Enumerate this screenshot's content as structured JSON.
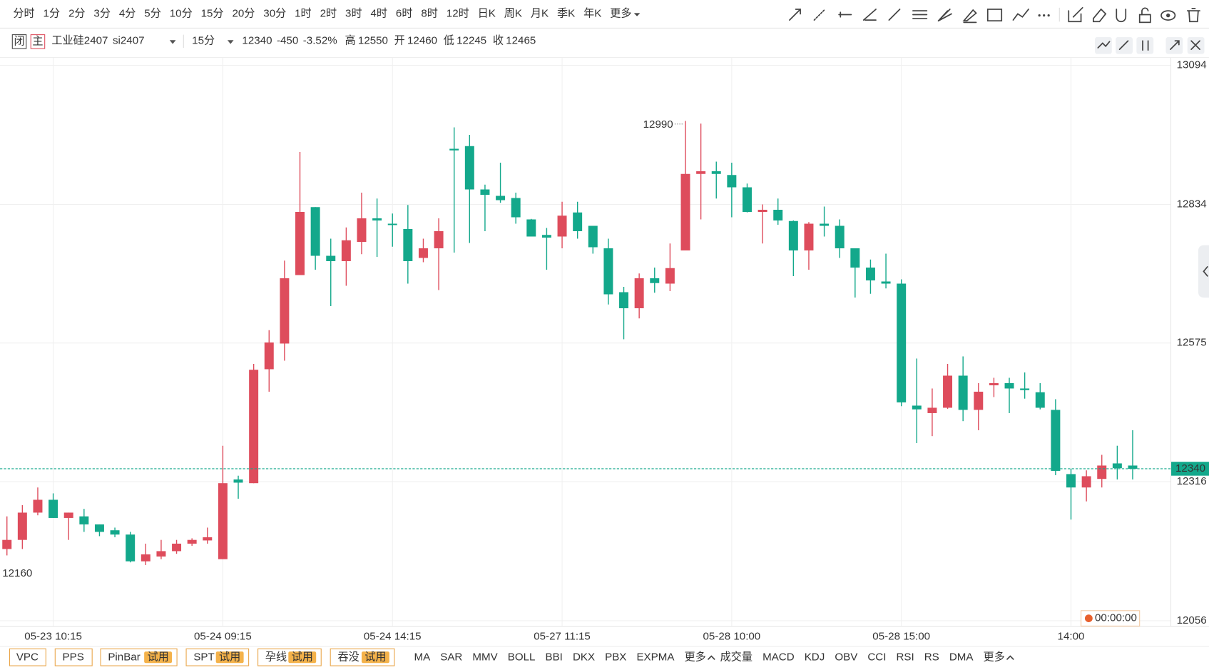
{
  "toolbar": {
    "periods": [
      "分时",
      "1分",
      "2分",
      "3分",
      "4分",
      "5分",
      "10分",
      "15分",
      "20分",
      "30分",
      "1时",
      "2时",
      "3时",
      "4时",
      "6时",
      "8时",
      "12时",
      "日K",
      "周K",
      "月K",
      "季K",
      "年K",
      "更多"
    ],
    "active": 7,
    "active_color": "#f07a2a"
  },
  "header": {
    "status": "闭",
    "main": "主",
    "name": "工业硅2407",
    "code": "si2407",
    "period": "15分",
    "price": 12340,
    "change": -450,
    "change_pct": "-3.52%",
    "high_label": "高",
    "high": 12550,
    "open_label": "开",
    "open": 12460,
    "low_label": "低",
    "low": 12245,
    "close_label": "收",
    "close": 12465
  },
  "chart_data": {
    "type": "candlestick",
    "categories": [
      null,
      null,
      null,
      "05-23 10:15",
      null,
      null,
      null,
      null,
      null,
      null,
      null,
      null,
      null,
      null,
      "05-24 09:15",
      null,
      null,
      null,
      null,
      null,
      null,
      null,
      null,
      null,
      null,
      "05-24 14:15",
      null,
      null,
      null,
      null,
      null,
      null,
      null,
      null,
      null,
      null,
      "05-27 11:15",
      null,
      null,
      null,
      null,
      null,
      null,
      null,
      null,
      null,
      null,
      "05-28 10:00",
      null,
      null,
      null,
      null,
      null,
      null,
      null,
      null,
      null,
      null,
      "05-28 15:00",
      null,
      null,
      null,
      null,
      null,
      null,
      null,
      null,
      null,
      null,
      "14:00",
      null,
      null,
      null,
      null
    ],
    "open": [
      12190,
      12207,
      12258,
      12282,
      12248,
      12251,
      12236,
      12225,
      12217,
      12167,
      12176,
      12186,
      12200,
      12206,
      12171,
      12320,
      12313,
      12526,
      12574,
      12702,
      12829,
      12738,
      12728,
      12764,
      12808,
      12798,
      12788,
      12734,
      12752,
      12938,
      12943,
      12862,
      12850,
      12846,
      12806,
      12777,
      12774,
      12819,
      12794,
      12752,
      12670,
      12640,
      12696,
      12686,
      12748,
      12891,
      12896,
      12889,
      12866,
      12820,
      12824,
      12803,
      12748,
      12798,
      12794,
      12752,
      12716,
      12690,
      12686,
      12458,
      12444,
      12454,
      12514,
      12450,
      12496,
      12500,
      12490,
      12483,
      12450,
      12330,
      12305,
      12321,
      12350,
      12346
    ],
    "high": [
      12251,
      12272,
      12305,
      12294,
      12258,
      12265,
      12236,
      12230,
      12222,
      12200,
      12207,
      12207,
      12210,
      12230,
      12383,
      12327,
      12536,
      12599,
      12729,
      12932,
      12829,
      12770,
      12791,
      12856,
      12845,
      12817,
      12833,
      12770,
      12808,
      12978,
      12964,
      12871,
      12912,
      12856,
      12807,
      12790,
      12839,
      12839,
      12794,
      12770,
      12680,
      12705,
      12716,
      12761,
      12990,
      12985,
      12914,
      12912,
      12873,
      12834,
      12845,
      12804,
      12801,
      12830,
      12806,
      12752,
      12731,
      12742,
      12694,
      12546,
      12490,
      12536,
      12550,
      12500,
      12510,
      12510,
      12520,
      12500,
      12470,
      12340,
      12337,
      12366,
      12383,
      12412
    ],
    "low": [
      12178,
      12190,
      12253,
      12248,
      12207,
      12222,
      12214,
      12212,
      12165,
      12160,
      12171,
      12181,
      12196,
      12200,
      12171,
      12284,
      12313,
      12484,
      12542,
      12702,
      12712,
      12644,
      12682,
      12741,
      12736,
      12755,
      12686,
      12726,
      12674,
      12744,
      12762,
      12784,
      12837,
      12798,
      12774,
      12712,
      12752,
      12770,
      12742,
      12647,
      12582,
      12621,
      12669,
      12672,
      12748,
      12806,
      12845,
      12810,
      12819,
      12761,
      12796,
      12700,
      12712,
      12774,
      12734,
      12660,
      12667,
      12677,
      12457,
      12388,
      12401,
      12452,
      12429,
      12412,
      12474,
      12444,
      12471,
      12451,
      12328,
      12245,
      12279,
      12305,
      12320,
      12320
    ],
    "close": [
      12207,
      12258,
      12282,
      12248,
      12258,
      12236,
      12222,
      12217,
      12167,
      12180,
      12186,
      12200,
      12207,
      12212,
      12313,
      12314,
      12525,
      12576,
      12696,
      12820,
      12738,
      12728,
      12767,
      12808,
      12804,
      12796,
      12728,
      12752,
      12784,
      12935,
      12862,
      12852,
      12842,
      12810,
      12774,
      12772,
      12813,
      12784,
      12754,
      12666,
      12640,
      12696,
      12687,
      12715,
      12891,
      12896,
      12891,
      12866,
      12820,
      12824,
      12804,
      12748,
      12798,
      12794,
      12752,
      12716,
      12692,
      12686,
      12464,
      12451,
      12454,
      12514,
      12450,
      12484,
      12500,
      12490,
      12487,
      12454,
      12336,
      12305,
      12326,
      12346,
      12341,
      12340
    ],
    "up_color": "#de4c5c",
    "down_color": "#13a88b",
    "ylim": [
      12046,
      13108
    ],
    "yticks": [
      13094,
      12834,
      12575,
      12316,
      12056
    ],
    "grid": true,
    "timer": "00:00:00"
  },
  "bottom": {
    "patterns": [
      {
        "name": "VPC"
      },
      {
        "name": "PPS"
      },
      {
        "name": "PinBar",
        "badge": "试用"
      },
      {
        "name": "SPT",
        "badge": "试用"
      },
      {
        "name": "孕线",
        "badge": "试用"
      },
      {
        "name": "吞没",
        "badge": "试用"
      }
    ],
    "main_indicators": [
      "MA",
      "SAR",
      "MMV",
      "BOLL",
      "BBI",
      "DKX",
      "PBX",
      "EXPMA",
      "更多"
    ],
    "sub_indicators": [
      "成交量",
      "MACD",
      "KDJ",
      "OBV",
      "CCI",
      "RSI",
      "RS",
      "DMA",
      "更多"
    ]
  }
}
